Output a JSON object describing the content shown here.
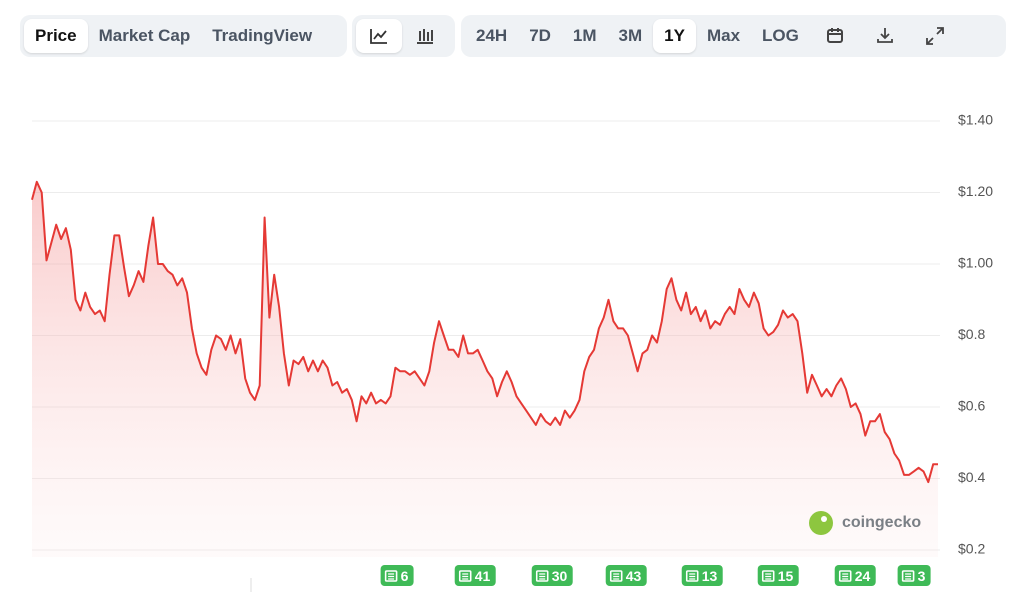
{
  "tabs": [
    "Price",
    "Market Cap",
    "TradingView"
  ],
  "active_tab": 0,
  "ranges": [
    "24H",
    "7D",
    "1M",
    "3M",
    "1Y",
    "Max",
    "LOG"
  ],
  "active_range": 4,
  "watermark": "coingecko",
  "news_badges": [
    6,
    41,
    30,
    43,
    13,
    15,
    24,
    3
  ],
  "chart_data": {
    "type": "area",
    "color": "#e53935",
    "grid": true,
    "ylim": [
      0.2,
      1.4
    ],
    "yticks": [
      {
        "value": 0.2,
        "label": "$0.2"
      },
      {
        "value": 0.4,
        "label": "$0.4"
      },
      {
        "value": 0.6,
        "label": "$0.6"
      },
      {
        "value": 0.8,
        "label": "$0.8"
      },
      {
        "value": 1.0,
        "label": "$1.00"
      },
      {
        "value": 1.2,
        "label": "$1.20"
      },
      {
        "value": 1.4,
        "label": "$1.40"
      }
    ],
    "values": [
      1.18,
      1.23,
      1.2,
      1.01,
      1.06,
      1.11,
      1.07,
      1.1,
      1.04,
      0.9,
      0.87,
      0.92,
      0.88,
      0.86,
      0.87,
      0.84,
      0.97,
      1.08,
      1.08,
      0.99,
      0.91,
      0.94,
      0.98,
      0.95,
      1.05,
      1.13,
      1.0,
      1.0,
      0.98,
      0.97,
      0.94,
      0.96,
      0.92,
      0.82,
      0.75,
      0.71,
      0.69,
      0.76,
      0.8,
      0.79,
      0.76,
      0.8,
      0.75,
      0.79,
      0.68,
      0.64,
      0.62,
      0.66,
      1.13,
      0.85,
      0.97,
      0.88,
      0.75,
      0.66,
      0.73,
      0.72,
      0.74,
      0.7,
      0.73,
      0.7,
      0.73,
      0.71,
      0.66,
      0.67,
      0.64,
      0.65,
      0.62,
      0.56,
      0.63,
      0.61,
      0.64,
      0.61,
      0.62,
      0.61,
      0.63,
      0.71,
      0.7,
      0.7,
      0.69,
      0.7,
      0.68,
      0.66,
      0.7,
      0.78,
      0.84,
      0.8,
      0.76,
      0.76,
      0.74,
      0.8,
      0.75,
      0.75,
      0.76,
      0.73,
      0.7,
      0.68,
      0.63,
      0.67,
      0.7,
      0.67,
      0.63,
      0.61,
      0.59,
      0.57,
      0.55,
      0.58,
      0.56,
      0.55,
      0.57,
      0.55,
      0.59,
      0.57,
      0.59,
      0.62,
      0.7,
      0.74,
      0.76,
      0.82,
      0.85,
      0.9,
      0.84,
      0.82,
      0.82,
      0.8,
      0.75,
      0.7,
      0.75,
      0.76,
      0.8,
      0.78,
      0.84,
      0.93,
      0.96,
      0.9,
      0.87,
      0.92,
      0.86,
      0.88,
      0.84,
      0.87,
      0.82,
      0.84,
      0.83,
      0.86,
      0.88,
      0.86,
      0.93,
      0.9,
      0.88,
      0.92,
      0.89,
      0.82,
      0.8,
      0.81,
      0.83,
      0.87,
      0.85,
      0.86,
      0.84,
      0.75,
      0.64,
      0.69,
      0.66,
      0.63,
      0.65,
      0.63,
      0.66,
      0.68,
      0.65,
      0.6,
      0.61,
      0.58,
      0.52,
      0.56,
      0.56,
      0.58,
      0.53,
      0.51,
      0.47,
      0.45,
      0.41,
      0.41,
      0.42,
      0.43,
      0.42,
      0.39,
      0.44,
      0.44
    ]
  }
}
